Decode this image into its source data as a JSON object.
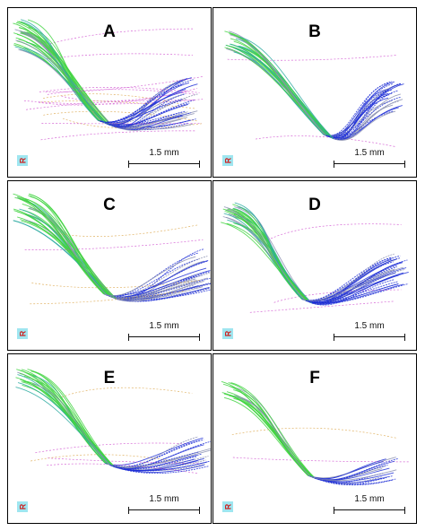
{
  "panels": [
    {
      "label": "A",
      "scale": "1.5 mm",
      "orient": "R"
    },
    {
      "label": "B",
      "scale": "1.5 mm",
      "orient": "R"
    },
    {
      "label": "C",
      "scale": "1.5 mm",
      "orient": "R"
    },
    {
      "label": "D",
      "scale": "1.5 mm",
      "orient": "R"
    },
    {
      "label": "E",
      "scale": "1.5 mm",
      "orient": "R"
    },
    {
      "label": "F",
      "scale": "1.5 mm",
      "orient": "R"
    }
  ],
  "colors": {
    "green": "#3fd43f",
    "blue": "#1f2fd6",
    "teal": "#2aa9a0",
    "magenta": "#cc44cc",
    "gray": "#8a8fb0",
    "orange": "#d9a040"
  }
}
